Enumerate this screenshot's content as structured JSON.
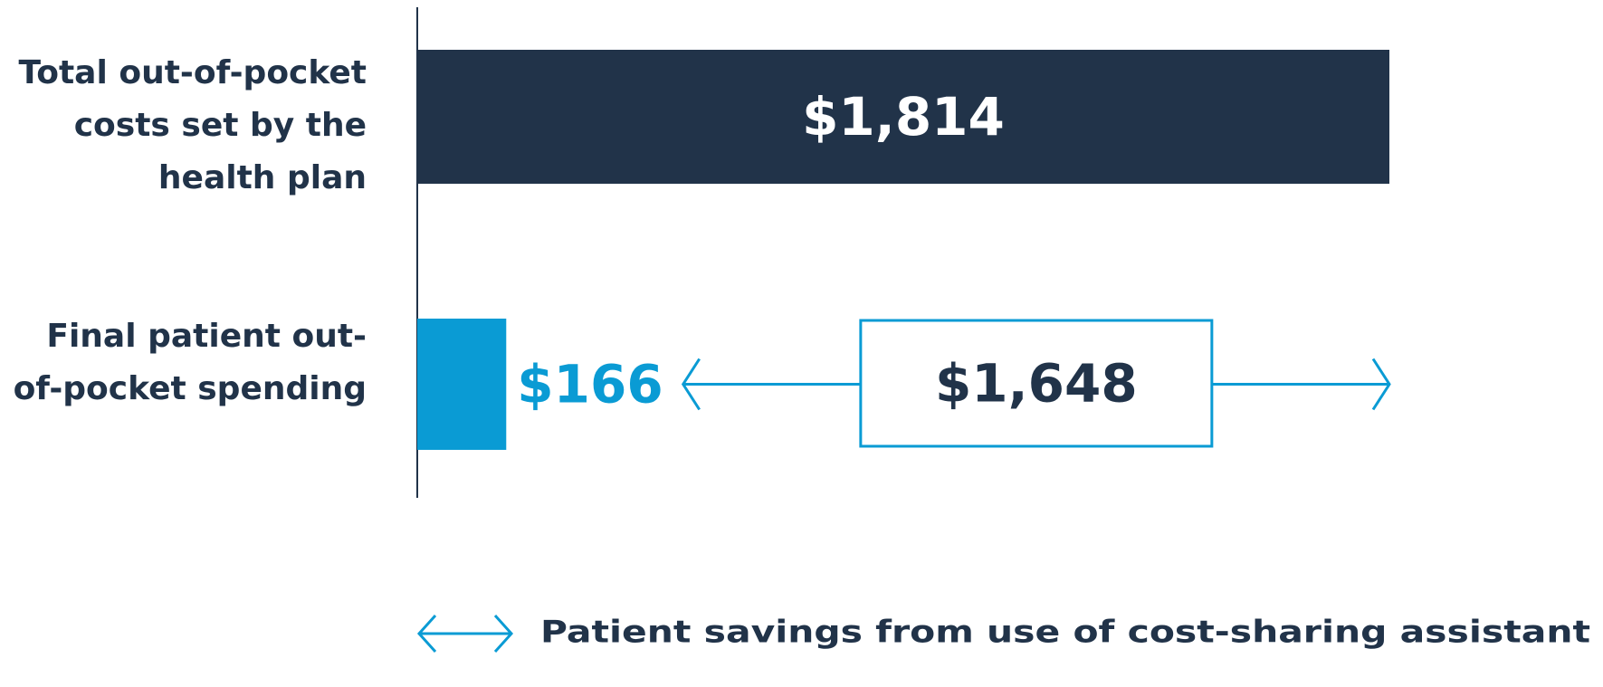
{
  "chart_data": {
    "type": "bar",
    "orientation": "horizontal",
    "categories": [
      "Total out-of-pocket costs set by the health plan",
      "Final patient out-of-pocket spending"
    ],
    "values": [
      1814,
      166
    ],
    "value_labels": [
      "$1,814",
      "$166"
    ],
    "colors": [
      "#213349",
      "#0a9bd4"
    ],
    "xlim": [
      0,
      1814
    ],
    "savings": {
      "value": 1648,
      "value_label": "$1,648",
      "label": "Patient savings from use of cost-sharing assistant",
      "color": "#0a9bd4"
    }
  }
}
